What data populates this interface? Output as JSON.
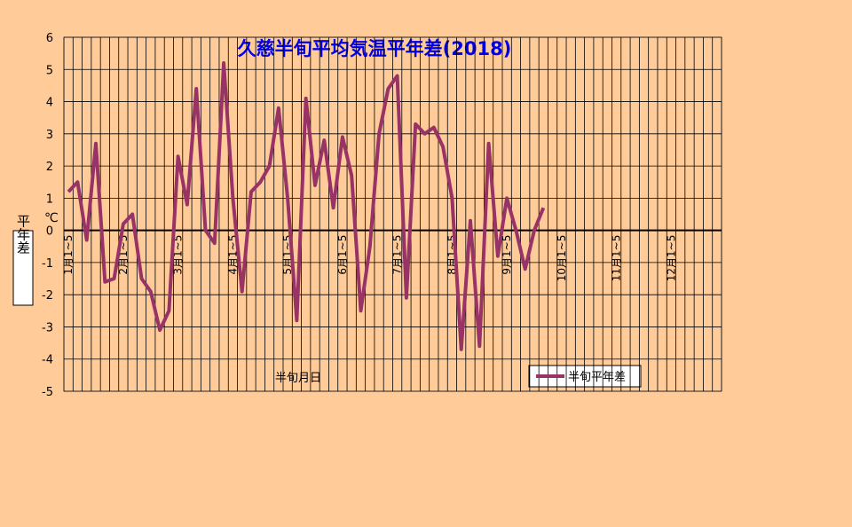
{
  "chart_data": {
    "type": "line",
    "title": "久慈半旬平均気温平年差(2018)",
    "y_label": "平年差",
    "y_unit": "℃",
    "x_label": "半旬月日",
    "categories": [
      "1月1~5",
      null,
      null,
      null,
      null,
      null,
      "2月1~5",
      null,
      null,
      null,
      null,
      null,
      "3月1~5",
      null,
      null,
      null,
      null,
      null,
      "4月1~5",
      null,
      null,
      null,
      null,
      null,
      "5月1~5",
      null,
      null,
      null,
      null,
      null,
      "6月1~5",
      null,
      null,
      null,
      null,
      null,
      "7月1~5",
      null,
      null,
      null,
      null,
      null,
      "8月1~5",
      null,
      null,
      null,
      null,
      null,
      "9月1~5",
      null,
      null,
      null,
      null,
      null,
      "10月1~5",
      null,
      null,
      null,
      null,
      null,
      "11月1~5",
      null,
      null,
      null,
      null,
      null,
      "12月1~5",
      null,
      null,
      null,
      null,
      null
    ],
    "series": [
      {
        "name": "半旬平年差",
        "color": "#993366",
        "values": [
          1.2,
          1.5,
          -0.3,
          2.7,
          -1.6,
          -1.5,
          0.2,
          0.5,
          -1.5,
          -1.9,
          -3.1,
          -2.5,
          2.3,
          0.8,
          4.4,
          0.0,
          -0.4,
          5.2,
          1.0,
          -1.9,
          1.2,
          1.5,
          2.0,
          3.8,
          1.0,
          -2.8,
          4.1,
          1.4,
          2.8,
          0.7,
          2.9,
          1.7,
          -2.5,
          -0.5,
          3.0,
          4.4,
          4.8,
          -2.1,
          3.3,
          3.0,
          3.2,
          2.6,
          1.0,
          -3.7,
          0.3,
          -3.6,
          2.7,
          -0.8,
          1.0,
          0.0,
          -1.2,
          0.0,
          0.7,
          null,
          null,
          null,
          null,
          null,
          null,
          null,
          null,
          null,
          null,
          null,
          null,
          null,
          null,
          null,
          null,
          null,
          null,
          null
        ]
      }
    ],
    "ylim": [
      -5,
      6
    ],
    "yticks": [
      -5,
      -4,
      -3,
      -2,
      -1,
      0,
      1,
      2,
      3,
      4,
      5,
      6
    ],
    "grid": true
  }
}
